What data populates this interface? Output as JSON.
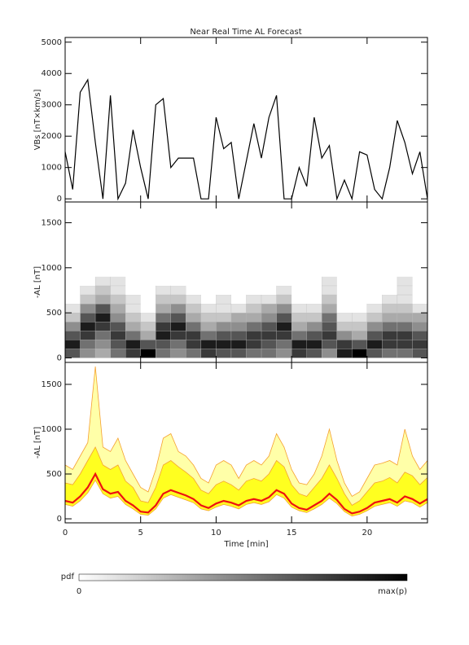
{
  "chart_data": [
    {
      "type": "line",
      "title": "Near Real Time AL Forecast",
      "ylabel": "VBs [nT×km/s]",
      "x": [
        0,
        0.5,
        1,
        1.5,
        2,
        2.5,
        3,
        3.5,
        4,
        4.5,
        5,
        5.5,
        6,
        6.5,
        7,
        7.5,
        8,
        8.5,
        9,
        9.5,
        10,
        10.5,
        11,
        11.5,
        12,
        12.5,
        13,
        13.5,
        14,
        14.5,
        15,
        15.5,
        16,
        16.5,
        17,
        17.5,
        18,
        18.5,
        19,
        19.5,
        20,
        20.5,
        21,
        21.5,
        22,
        22.5,
        23,
        23.5,
        24
      ],
      "series": [
        {
          "color": "#000000",
          "values": [
            1500,
            300,
            3400,
            3800,
            1800,
            0,
            3300,
            0,
            500,
            2200,
            1000,
            0,
            3000,
            3200,
            1000,
            1300,
            1300,
            1300,
            0,
            0,
            2600,
            1600,
            1800,
            0,
            1200,
            2400,
            1300,
            2600,
            3300,
            0,
            0,
            1000,
            400,
            2600,
            1300,
            1700,
            0,
            600,
            0,
            1500,
            1400,
            300,
            0,
            1000,
            2500,
            1800,
            800,
            1500,
            0
          ]
        }
      ],
      "xlim": [
        0,
        24
      ],
      "ylim": [
        -100,
        5150
      ],
      "yticks": [
        0,
        1000,
        2000,
        3000,
        4000,
        5000
      ]
    },
    {
      "type": "heatmap",
      "ylabel": "-AL [nT]",
      "x_bins": [
        0,
        1,
        2,
        3,
        4,
        5,
        6,
        7,
        8,
        9,
        10,
        11,
        12,
        13,
        14,
        15,
        16,
        17,
        18,
        19,
        20,
        21,
        22,
        23,
        24
      ],
      "y_bins": [
        0,
        100,
        200,
        300,
        400,
        500,
        600,
        700,
        800,
        900,
        1000
      ],
      "z": [
        [
          6,
          8,
          6,
          4,
          2,
          1,
          0,
          0,
          0,
          0
        ],
        [
          4,
          5,
          7,
          8,
          6,
          4,
          2,
          1,
          0,
          0
        ],
        [
          3,
          4,
          5,
          7,
          8,
          6,
          3,
          2,
          1,
          0
        ],
        [
          5,
          6,
          7,
          6,
          4,
          3,
          2,
          1,
          1,
          0
        ],
        [
          7,
          8,
          5,
          3,
          2,
          1,
          1,
          0,
          0,
          0
        ],
        [
          9,
          6,
          3,
          2,
          1,
          0,
          0,
          0,
          0,
          0
        ],
        [
          5,
          6,
          8,
          7,
          5,
          3,
          2,
          1,
          0,
          0
        ],
        [
          4,
          5,
          7,
          8,
          6,
          4,
          2,
          1,
          0,
          0
        ],
        [
          5,
          7,
          7,
          5,
          3,
          2,
          1,
          0,
          0,
          0
        ],
        [
          7,
          8,
          5,
          3,
          2,
          1,
          0,
          0,
          0,
          0
        ],
        [
          6,
          8,
          6,
          4,
          2,
          1,
          1,
          0,
          0,
          0
        ],
        [
          6,
          8,
          6,
          4,
          3,
          1,
          0,
          0,
          0,
          0
        ],
        [
          5,
          7,
          7,
          5,
          3,
          2,
          1,
          0,
          0,
          0
        ],
        [
          5,
          6,
          7,
          6,
          4,
          3,
          1,
          0,
          0,
          0
        ],
        [
          4,
          5,
          7,
          8,
          6,
          4,
          2,
          1,
          0,
          0
        ],
        [
          7,
          8,
          5,
          3,
          2,
          1,
          0,
          0,
          0,
          0
        ],
        [
          6,
          8,
          6,
          4,
          2,
          1,
          0,
          0,
          0,
          0
        ],
        [
          4,
          6,
          7,
          6,
          5,
          3,
          2,
          1,
          1,
          0
        ],
        [
          8,
          7,
          4,
          2,
          1,
          0,
          0,
          0,
          0,
          0
        ],
        [
          9,
          6,
          3,
          2,
          1,
          0,
          0,
          0,
          0,
          0
        ],
        [
          6,
          8,
          6,
          4,
          2,
          1,
          0,
          0,
          0,
          0
        ],
        [
          5,
          7,
          7,
          5,
          3,
          2,
          1,
          0,
          0,
          0
        ],
        [
          5,
          7,
          7,
          5,
          3,
          2,
          1,
          1,
          1,
          0
        ],
        [
          6,
          7,
          6,
          4,
          3,
          1,
          0,
          0,
          0,
          0
        ]
      ],
      "zlim": [
        0,
        9
      ],
      "colorbar": {
        "label": "pdf",
        "min_label": "0",
        "max_label": "max(p)"
      },
      "xlim": [
        0,
        24
      ],
      "ylim": [
        -50,
        1730
      ],
      "yticks": [
        0,
        500,
        1000,
        1500
      ]
    },
    {
      "type": "band",
      "ylabel": "-AL [nT]",
      "xlabel": "Time [min]",
      "x": [
        0,
        0.5,
        1,
        1.5,
        2,
        2.5,
        3,
        3.5,
        4,
        4.5,
        5,
        5.5,
        6,
        6.5,
        7,
        7.5,
        8,
        8.5,
        9,
        9.5,
        10,
        10.5,
        11,
        11.5,
        12,
        12.5,
        13,
        13.5,
        14,
        14.5,
        15,
        15.5,
        16,
        16.5,
        17,
        17.5,
        18,
        18.5,
        19,
        19.5,
        20,
        20.5,
        21,
        21.5,
        22,
        22.5,
        23,
        23.5,
        24
      ],
      "series": [
        {
          "color": "#ffffa8",
          "values": [
            600,
            550,
            700,
            850,
            1700,
            800,
            750,
            900,
            650,
            500,
            350,
            300,
            550,
            900,
            950,
            750,
            700,
            600,
            450,
            400,
            600,
            650,
            600,
            450,
            600,
            650,
            600,
            700,
            950,
            800,
            550,
            400,
            380,
            500,
            700,
            1000,
            650,
            400,
            250,
            300,
            450,
            600,
            620,
            650,
            600,
            1000,
            700,
            550,
            650
          ]
        },
        {
          "color": "#ffff20",
          "values": [
            400,
            380,
            500,
            650,
            800,
            600,
            550,
            600,
            420,
            350,
            200,
            180,
            350,
            600,
            650,
            580,
            520,
            450,
            320,
            280,
            380,
            420,
            380,
            320,
            420,
            450,
            420,
            500,
            650,
            580,
            380,
            280,
            250,
            350,
            450,
            600,
            450,
            280,
            150,
            200,
            300,
            400,
            420,
            460,
            400,
            520,
            480,
            380,
            460
          ]
        },
        {
          "color": "#f5a030",
          "values": [
            160,
            140,
            200,
            290,
            430,
            280,
            230,
            250,
            160,
            110,
            50,
            40,
            110,
            230,
            270,
            240,
            210,
            180,
            110,
            90,
            130,
            160,
            140,
            110,
            160,
            180,
            160,
            190,
            270,
            230,
            130,
            90,
            70,
            110,
            160,
            230,
            170,
            80,
            30,
            50,
            90,
            140,
            160,
            180,
            140,
            200,
            180,
            130,
            180
          ]
        },
        {
          "color": "#ee1111",
          "values": [
            200,
            180,
            250,
            350,
            500,
            330,
            280,
            300,
            200,
            150,
            80,
            70,
            150,
            280,
            320,
            290,
            260,
            220,
            150,
            120,
            170,
            200,
            180,
            150,
            200,
            220,
            200,
            240,
            320,
            280,
            170,
            120,
            100,
            150,
            200,
            280,
            210,
            110,
            60,
            80,
            120,
            180,
            200,
            220,
            180,
            250,
            220,
            170,
            220
          ]
        }
      ],
      "xlim": [
        0,
        24
      ],
      "ylim": [
        -45,
        1745
      ],
      "yticks": [
        0,
        500,
        1000,
        1500
      ],
      "xticks": [
        0,
        5,
        10,
        15,
        20
      ]
    }
  ]
}
